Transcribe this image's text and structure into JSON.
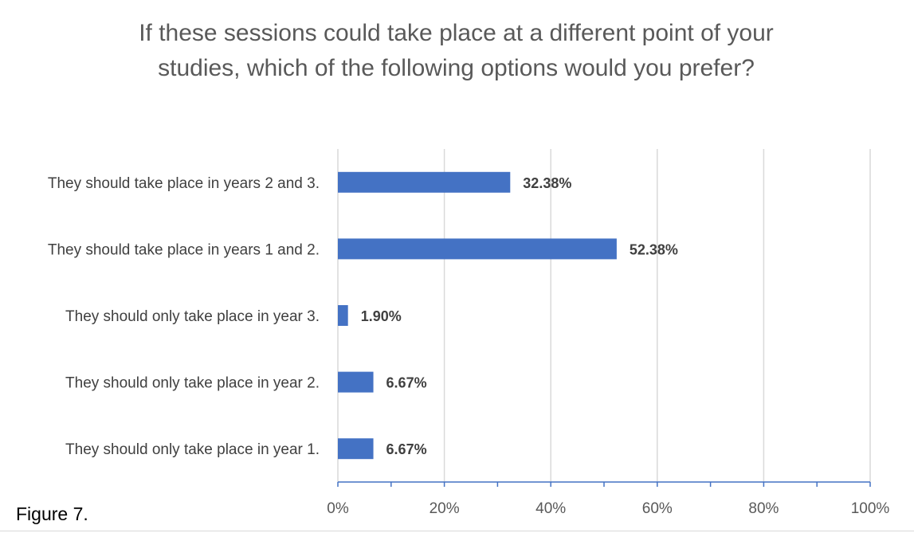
{
  "figure_caption": "Figure 7.",
  "chart_data": {
    "type": "bar",
    "orientation": "horizontal",
    "title": "If these sessions could take place at a different point of your studies, which of the following options would you prefer?",
    "categories": [
      "They should take place in years 2 and 3.",
      "They should take place in years 1 and 2.",
      "They should only take place in year 3.",
      "They should only take place in year 2.",
      "They should only take place in year 1."
    ],
    "values": [
      32.38,
      52.38,
      1.9,
      6.67,
      6.67
    ],
    "data_labels": [
      "32.38%",
      "52.38%",
      "1.90%",
      "6.67%",
      "6.67%"
    ],
    "xlim": [
      0,
      100
    ],
    "xticks": [
      0,
      20,
      40,
      60,
      80,
      100
    ],
    "xtick_labels": [
      "0%",
      "20%",
      "40%",
      "60%",
      "80%",
      "100%"
    ],
    "grid": true,
    "bar_color": "#4472c4",
    "grid_color": "#d9d9d9"
  }
}
